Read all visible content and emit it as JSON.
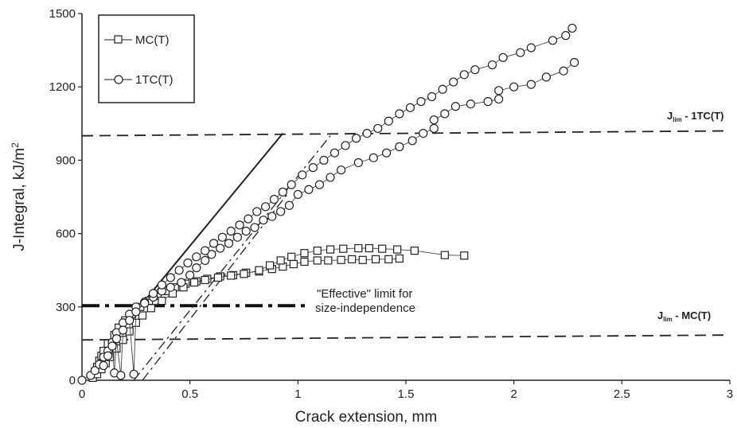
{
  "chart_data": {
    "type": "scatter",
    "xlabel": "Crack extension, mm",
    "ylabel": "J-Integral, kJ/m",
    "ylabel_superscript": "2",
    "xlim": [
      0,
      3
    ],
    "ylim": [
      0,
      1500
    ],
    "x_ticks": [
      0,
      0.5,
      1,
      1.5,
      2,
      2.5,
      3
    ],
    "y_ticks": [
      0,
      300,
      600,
      900,
      1200,
      1500
    ],
    "x_tick_labels": [
      "0",
      "0.5",
      "1",
      "1.5",
      "2",
      "2.5",
      "3"
    ],
    "y_tick_labels": [
      "0",
      "300",
      "600",
      "900",
      "1200",
      "1500"
    ],
    "grid": false,
    "legend_position": "top-left",
    "series": [
      {
        "name": "MC(T)",
        "marker": "square",
        "points": [
          [
            0.05,
            20
          ],
          [
            0.06,
            35
          ],
          [
            0.07,
            55
          ],
          [
            0.08,
            80
          ],
          [
            0.09,
            100
          ],
          [
            0.1,
            120
          ],
          [
            0.12,
            150
          ],
          [
            0.15,
            185
          ],
          [
            0.17,
            215
          ],
          [
            0.2,
            245
          ],
          [
            0.23,
            270
          ],
          [
            0.27,
            300
          ],
          [
            0.31,
            325
          ],
          [
            0.35,
            345
          ],
          [
            0.39,
            365
          ],
          [
            0.43,
            380
          ],
          [
            0.48,
            395
          ],
          [
            0.53,
            405
          ],
          [
            0.58,
            415
          ],
          [
            0.64,
            425
          ],
          [
            0.7,
            430
          ],
          [
            0.76,
            440
          ],
          [
            0.82,
            445
          ],
          [
            0.88,
            455
          ],
          [
            0.93,
            465
          ],
          [
            0.98,
            475
          ],
          [
            1.03,
            485
          ],
          [
            1.09,
            490
          ],
          [
            1.14,
            490
          ],
          [
            1.2,
            492
          ],
          [
            1.25,
            495
          ],
          [
            1.3,
            492
          ],
          [
            1.36,
            495
          ],
          [
            1.42,
            495
          ],
          [
            1.47,
            498
          ]
        ],
        "points_b": [
          [
            0.05,
            10
          ],
          [
            0.07,
            25
          ],
          [
            0.09,
            45
          ],
          [
            0.11,
            70
          ],
          [
            0.13,
            95
          ],
          [
            0.16,
            130
          ],
          [
            0.19,
            165
          ],
          [
            0.22,
            200
          ],
          [
            0.25,
            235
          ],
          [
            0.28,
            265
          ],
          [
            0.32,
            295
          ],
          [
            0.37,
            325
          ],
          [
            0.42,
            355
          ],
          [
            0.47,
            380
          ],
          [
            0.52,
            400
          ],
          [
            0.57,
            410
          ],
          [
            0.63,
            420
          ],
          [
            0.69,
            428
          ],
          [
            0.75,
            435
          ],
          [
            0.82,
            450
          ],
          [
            0.87,
            470
          ],
          [
            0.92,
            490
          ],
          [
            0.97,
            505
          ],
          [
            1.03,
            520
          ],
          [
            1.09,
            530
          ],
          [
            1.15,
            535
          ],
          [
            1.21,
            538
          ],
          [
            1.28,
            540
          ],
          [
            1.33,
            540
          ],
          [
            1.39,
            538
          ],
          [
            1.46,
            535
          ],
          [
            1.54,
            530
          ],
          [
            1.68,
            512
          ],
          [
            1.77,
            510
          ]
        ]
      },
      {
        "name": "1TC(T)",
        "marker": "circle",
        "points": [
          [
            0.0,
            0
          ],
          [
            0.04,
            20
          ],
          [
            0.06,
            40
          ],
          [
            0.08,
            65
          ],
          [
            0.1,
            95
          ],
          [
            0.12,
            120
          ],
          [
            0.14,
            155
          ],
          [
            0.16,
            195
          ],
          [
            0.19,
            235
          ],
          [
            0.22,
            270
          ],
          [
            0.25,
            300
          ],
          [
            0.29,
            320
          ],
          [
            0.33,
            340
          ],
          [
            0.37,
            365
          ],
          [
            0.41,
            380
          ],
          [
            0.46,
            400
          ],
          [
            0.5,
            430
          ],
          [
            0.53,
            460
          ],
          [
            0.57,
            490
          ],
          [
            0.6,
            515
          ],
          [
            0.64,
            540
          ],
          [
            0.68,
            560
          ],
          [
            0.72,
            585
          ],
          [
            0.76,
            610
          ],
          [
            0.8,
            625
          ],
          [
            0.84,
            655
          ],
          [
            0.88,
            670
          ],
          [
            0.92,
            690
          ],
          [
            0.96,
            715
          ],
          [
            1.0,
            760
          ],
          [
            1.05,
            780
          ],
          [
            1.1,
            800
          ],
          [
            1.15,
            830
          ],
          [
            1.2,
            860
          ],
          [
            1.28,
            890
          ],
          [
            1.35,
            910
          ],
          [
            1.41,
            930
          ],
          [
            1.47,
            955
          ],
          [
            1.53,
            980
          ],
          [
            1.58,
            1010
          ],
          [
            1.63,
            1030
          ],
          [
            1.63,
            1065
          ],
          [
            1.68,
            1090
          ],
          [
            1.73,
            1120
          ],
          [
            1.8,
            1130
          ],
          [
            1.88,
            1140
          ],
          [
            1.93,
            1150
          ],
          [
            1.93,
            1185
          ],
          [
            2.0,
            1200
          ],
          [
            2.08,
            1210
          ],
          [
            2.15,
            1240
          ],
          [
            2.23,
            1265
          ],
          [
            2.28,
            1300
          ]
        ],
        "points_b": [
          [
            0.1,
            60
          ],
          [
            0.12,
            100
          ],
          [
            0.14,
            140
          ],
          [
            0.16,
            170
          ],
          [
            0.19,
            205
          ],
          [
            0.22,
            245
          ],
          [
            0.25,
            280
          ],
          [
            0.29,
            315
          ],
          [
            0.33,
            355
          ],
          [
            0.37,
            390
          ],
          [
            0.41,
            420
          ],
          [
            0.45,
            450
          ],
          [
            0.49,
            480
          ],
          [
            0.53,
            505
          ],
          [
            0.57,
            530
          ],
          [
            0.61,
            560
          ],
          [
            0.65,
            585
          ],
          [
            0.69,
            610
          ],
          [
            0.73,
            635
          ],
          [
            0.77,
            660
          ],
          [
            0.81,
            690
          ],
          [
            0.85,
            710
          ],
          [
            0.89,
            740
          ],
          [
            0.93,
            770
          ],
          [
            0.97,
            800
          ],
          [
            1.02,
            840
          ],
          [
            1.07,
            870
          ],
          [
            1.12,
            900
          ],
          [
            1.17,
            930
          ],
          [
            1.22,
            960
          ],
          [
            1.27,
            990
          ],
          [
            1.32,
            1010
          ],
          [
            1.37,
            1030
          ],
          [
            1.42,
            1060
          ],
          [
            1.47,
            1090
          ],
          [
            1.52,
            1115
          ],
          [
            1.57,
            1140
          ],
          [
            1.62,
            1160
          ],
          [
            1.67,
            1190
          ],
          [
            1.72,
            1220
          ],
          [
            1.77,
            1250
          ],
          [
            1.82,
            1270
          ],
          [
            1.9,
            1290
          ],
          [
            1.95,
            1320
          ],
          [
            2.03,
            1340
          ],
          [
            2.08,
            1360
          ],
          [
            2.18,
            1390
          ],
          [
            2.24,
            1410
          ],
          [
            2.27,
            1440
          ],
          [
            0.15,
            30
          ],
          [
            0.18,
            20
          ],
          [
            0.24,
            25
          ]
        ]
      }
    ],
    "lines": [
      {
        "style": "solid",
        "from": [
          0.22,
          250
        ],
        "to": [
          0.93,
          1010
        ]
      },
      {
        "style": "dashdot",
        "from": [
          0.24,
          0
        ],
        "to": [
          1.15,
          1000
        ]
      },
      {
        "style": "dashdot",
        "from": [
          0.28,
          0
        ],
        "to": [
          0.95,
          760
        ]
      }
    ],
    "reference_lines": [
      {
        "y": 1000,
        "y_end": 1020,
        "style": "dashed",
        "label_main": "J",
        "label_sub": "lim",
        "label_rest": " - 1TC(T)"
      },
      {
        "y": 165,
        "y_end": 185,
        "style": "dashed",
        "label_main": "J",
        "label_sub": "lim",
        "label_rest": " - MC(T)"
      },
      {
        "y": 305,
        "x_end": 1.05,
        "style": "dashdot-thick",
        "label_line1": "\"Effective\" limit for",
        "label_line2": "size-independence"
      }
    ]
  }
}
